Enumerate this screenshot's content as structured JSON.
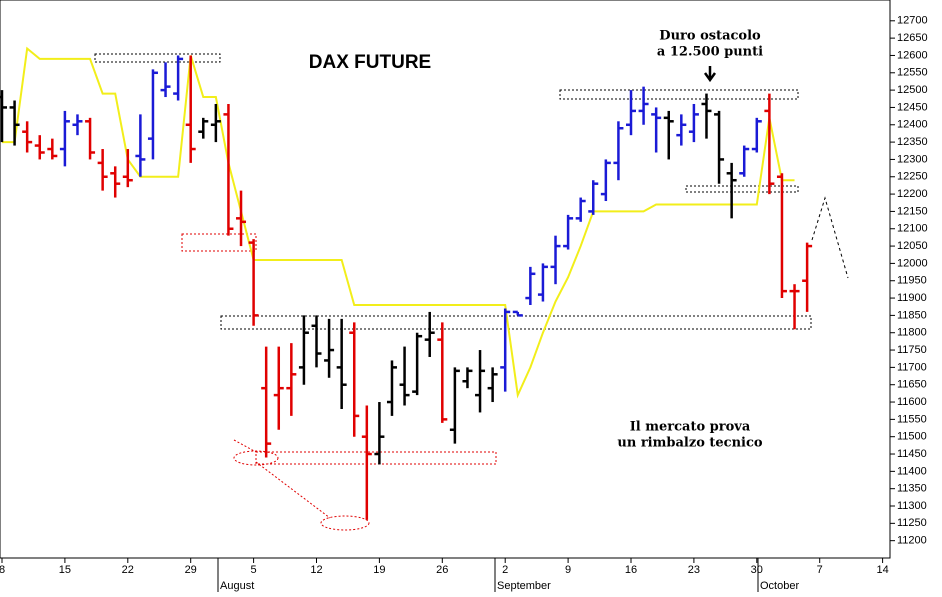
{
  "chart_data": {
    "type": "ohlc",
    "title": "DAX FUTURE",
    "annotations": [
      "Duro ostacolo",
      "a 12.500 punti",
      "Il mercato prova",
      "un rimbalzo tecnico"
    ],
    "months": [
      "August",
      "September",
      "October"
    ],
    "categories": [
      "8",
      null,
      null,
      null,
      null,
      "15",
      null,
      null,
      null,
      null,
      "22",
      null,
      null,
      null,
      null,
      "29",
      null,
      null,
      null,
      null,
      "5",
      null,
      null,
      null,
      null,
      "12",
      null,
      null,
      null,
      null,
      "19",
      null,
      null,
      null,
      null,
      "26",
      null,
      null,
      null,
      null,
      "2",
      null,
      null,
      null,
      null,
      "9",
      null,
      null,
      null,
      null,
      "16",
      null,
      null,
      null,
      null,
      "23",
      null,
      null,
      null,
      null,
      "30",
      null,
      null,
      null,
      null,
      "7",
      null,
      null,
      null,
      null,
      "14"
    ],
    "open": [
      12480,
      12450,
      12380,
      12340,
      12330,
      12330,
      12400,
      12410,
      12290,
      12260,
      12250,
      12310,
      12360,
      12500,
      12490,
      12400,
      12380,
      12400,
      12430,
      12130,
      12060,
      11640,
      11620,
      11640,
      11700,
      11820,
      11720,
      11700,
      11800,
      11500,
      11450,
      11600,
      11650,
      11630,
      11780,
      11780,
      11520,
      11660,
      11620,
      11640,
      11700,
      11860,
      11900,
      11910,
      11990,
      12050,
      12130,
      12150,
      12200,
      12290,
      12400,
      12440,
      12430,
      12420,
      12370,
      12380,
      12460,
      12430,
      12260,
      12260,
      12330,
      12440,
      12250,
      11920,
      11950,
      null,
      null,
      null,
      null,
      null,
      null
    ],
    "high": [
      12500,
      12470,
      12410,
      12370,
      12360,
      12440,
      12430,
      12420,
      12330,
      12280,
      12330,
      12430,
      12560,
      12580,
      12600,
      12600,
      12420,
      12460,
      12460,
      12210,
      12070,
      11760,
      11760,
      11770,
      11850,
      11850,
      11840,
      11840,
      11830,
      11590,
      11600,
      11720,
      11760,
      11800,
      11860,
      11830,
      11700,
      11700,
      11750,
      11700,
      11870,
      11860,
      11990,
      12000,
      12080,
      12140,
      12190,
      12240,
      12300,
      12410,
      12500,
      12510,
      12450,
      12440,
      12430,
      12460,
      12490,
      12440,
      12290,
      12340,
      12420,
      12490,
      12260,
      11940,
      12060,
      null,
      null,
      null,
      null,
      null,
      null
    ],
    "low": [
      12350,
      12340,
      12320,
      12300,
      12300,
      12280,
      12370,
      12300,
      12210,
      12190,
      12220,
      12250,
      12300,
      12480,
      12470,
      12290,
      12360,
      12350,
      12080,
      12050,
      11820,
      11440,
      11520,
      11560,
      11650,
      11700,
      11670,
      11580,
      11500,
      11260,
      11420,
      11560,
      11590,
      11620,
      11730,
      11540,
      11480,
      11640,
      11570,
      11600,
      11630,
      11850,
      11880,
      11890,
      11940,
      12040,
      12120,
      12140,
      12180,
      12240,
      12370,
      12400,
      12320,
      12300,
      12340,
      12350,
      12360,
      12230,
      12130,
      12250,
      12320,
      12200,
      11900,
      11810,
      11860,
      null,
      null,
      null,
      null,
      null,
      null
    ],
    "close": [
      12450,
      12400,
      12350,
      12320,
      12310,
      12410,
      12410,
      12320,
      12250,
      12230,
      12240,
      12300,
      12550,
      12510,
      12590,
      12330,
      12410,
      12410,
      12100,
      12120,
      11850,
      11480,
      11640,
      11680,
      11800,
      11740,
      11750,
      11650,
      11560,
      11450,
      11500,
      11700,
      11620,
      11790,
      11800,
      11550,
      11690,
      11690,
      11690,
      11680,
      11860,
      11850,
      11970,
      11990,
      12050,
      12130,
      12180,
      12230,
      12290,
      12390,
      12440,
      12460,
      12420,
      12410,
      12400,
      12430,
      12440,
      12300,
      12240,
      12330,
      12410,
      12230,
      11920,
      11920,
      12050,
      null,
      null,
      null,
      null,
      null,
      null
    ],
    "colors": [
      "#000000",
      "#000000",
      "#e00000",
      "#e00000",
      "#e00000",
      "#1a1ad6",
      "#1a1ad6",
      "#e00000",
      "#e00000",
      "#e00000",
      "#e00000",
      "#1a1ad6",
      "#1a1ad6",
      "#1a1ad6",
      "#1a1ad6",
      "#e00000",
      "#000000",
      "#000000",
      "#e00000",
      "#e00000",
      "#e00000",
      "#e00000",
      "#e00000",
      "#e00000",
      "#000000",
      "#000000",
      "#000000",
      "#000000",
      "#e00000",
      "#e00000",
      "#000000",
      "#000000",
      "#000000",
      "#000000",
      "#000000",
      "#e00000",
      "#000000",
      "#000000",
      "#000000",
      "#000000",
      "#1a1ad6",
      "#1a1ad6",
      "#1a1ad6",
      "#1a1ad6",
      "#1a1ad6",
      "#1a1ad6",
      "#1a1ad6",
      "#1a1ad6",
      "#1a1ad6",
      "#1a1ad6",
      "#1a1ad6",
      "#1a1ad6",
      "#1a1ad6",
      "#000000",
      "#1a1ad6",
      "#1a1ad6",
      "#000000",
      "#000000",
      "#000000",
      "#1a1ad6",
      "#1a1ad6",
      "#e00000",
      "#e00000",
      "#e00000",
      "#e00000",
      null,
      null,
      null,
      null,
      null,
      null
    ],
    "line": {
      "color": "#f2ee1a",
      "values": [
        12350,
        12350,
        12620,
        12590,
        12590,
        12590,
        12590,
        12590,
        12490,
        12490,
        12300,
        12250,
        12250,
        12250,
        12250,
        12600,
        12480,
        12480,
        12290,
        12150,
        12010,
        12010,
        12010,
        12010,
        12010,
        12010,
        12010,
        12010,
        11880,
        11880,
        11880,
        11880,
        11880,
        11880,
        11880,
        11880,
        11880,
        11880,
        11880,
        11880,
        11880,
        11620,
        11700,
        11800,
        11890,
        11960,
        12050,
        12150,
        12150,
        12150,
        12150,
        12150,
        12170,
        12170,
        12170,
        12170,
        12170,
        12170,
        12170,
        12170,
        12170,
        12420,
        12240,
        12240,
        null,
        null,
        null,
        null,
        null,
        null,
        null
      ]
    },
    "ylim": [
      11150,
      12760
    ],
    "yticks": [
      11200,
      11250,
      11300,
      11350,
      11400,
      11450,
      11500,
      11550,
      11600,
      11650,
      11700,
      11750,
      11800,
      11850,
      11900,
      11950,
      12000,
      12050,
      12100,
      12150,
      12200,
      12250,
      12300,
      12350,
      12400,
      12450,
      12500,
      12550,
      12600,
      12650,
      12700
    ]
  }
}
